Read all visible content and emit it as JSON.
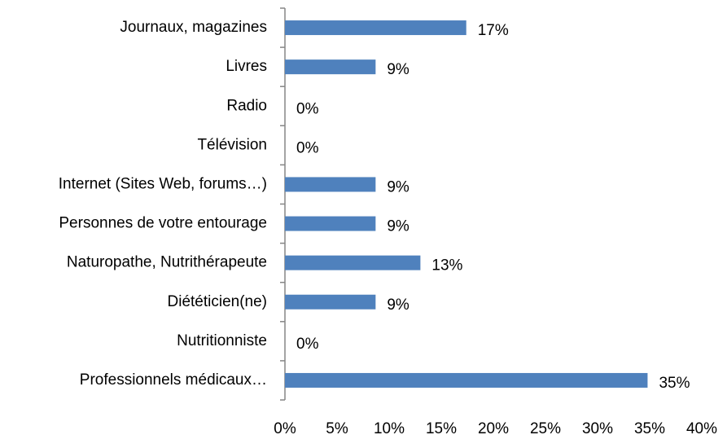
{
  "chart_data": {
    "type": "bar",
    "orientation": "horizontal",
    "categories": [
      "Journaux, magazines",
      "Livres",
      "Radio",
      "Télévision",
      "Internet (Sites Web, forums…)",
      "Personnes de votre entourage",
      "Naturopathe, Nutrithérapeute",
      "Diététicien(ne)",
      "Nutritionniste",
      "Professionnels médicaux…"
    ],
    "values": [
      17.4,
      8.7,
      0,
      0,
      8.7,
      8.7,
      13.0,
      8.7,
      0,
      34.8
    ],
    "value_labels": [
      "17%",
      "9%",
      "0%",
      "0%",
      "9%",
      "9%",
      "13%",
      "9%",
      "0%",
      "35%"
    ],
    "color": "#4f81bd",
    "xlim": [
      0,
      40
    ],
    "xticks": [
      {
        "value": 0,
        "label": "0%"
      },
      {
        "value": 5,
        "label": "5%"
      },
      {
        "value": 10,
        "label": "10%"
      },
      {
        "value": 15,
        "label": "15%"
      },
      {
        "value": 20,
        "label": "20%"
      },
      {
        "value": 25,
        "label": "25%"
      },
      {
        "value": 30,
        "label": "30%"
      },
      {
        "value": 35,
        "label": "35%"
      },
      {
        "value": 40,
        "label": "40%"
      }
    ],
    "grid": false
  }
}
